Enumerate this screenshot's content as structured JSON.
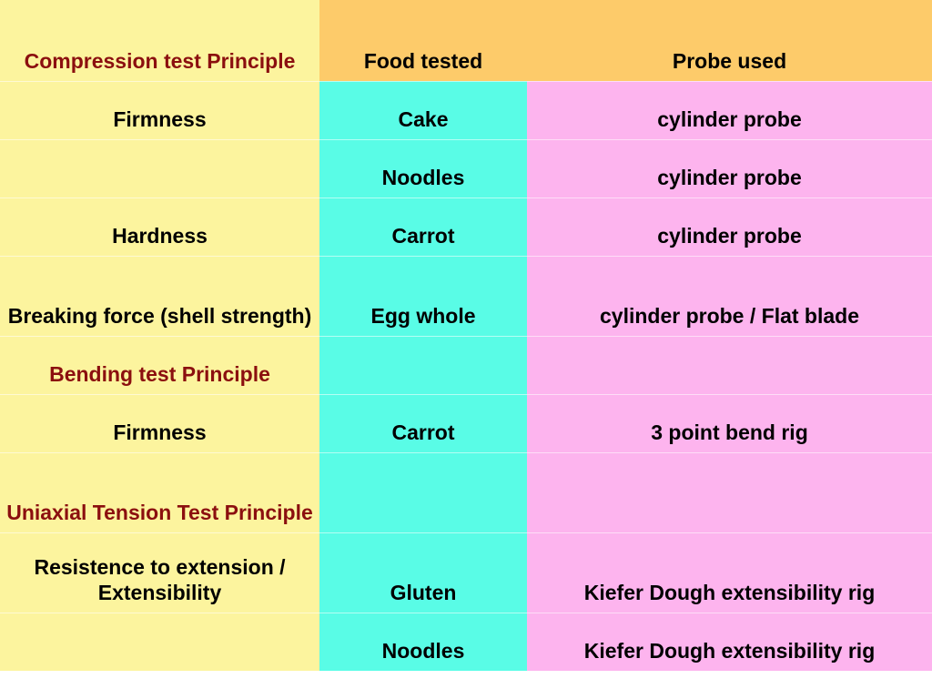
{
  "table": {
    "headers": {
      "principle": "Compression test Principle",
      "food": "Food tested",
      "probe": "Probe used"
    },
    "rows": [
      {
        "principle": "Firmness",
        "food": "Cake",
        "probe": "cylinder probe"
      },
      {
        "principle": "",
        "food": "Noodles",
        "probe": "cylinder probe"
      },
      {
        "principle": "Hardness",
        "food": "Carrot",
        "probe": "cylinder probe"
      },
      {
        "principle": "Breaking force (shell strength)",
        "food": "Egg whole",
        "probe": "cylinder probe / Flat blade"
      },
      {
        "principle": "Bending test Principle",
        "food": "",
        "probe": ""
      },
      {
        "principle": "Firmness",
        "food": "Carrot",
        "probe": "3 point bend rig"
      },
      {
        "principle": "Uniaxial Tension Test Principle",
        "food": "",
        "probe": ""
      },
      {
        "principle": "Resistence to extension / Extensibility",
        "food": "Gluten",
        "probe": "Kiefer Dough extensibility rig"
      },
      {
        "principle": "",
        "food": "Noodles",
        "probe": "Kiefer Dough extensibility rig"
      }
    ]
  },
  "colors": {
    "principle_column": "#fcf49e",
    "food_column": "#59fce6",
    "probe_column": "#fdb4ee",
    "header_band": "#fdcb6a",
    "section_heading_text": "#8b0f0f"
  }
}
